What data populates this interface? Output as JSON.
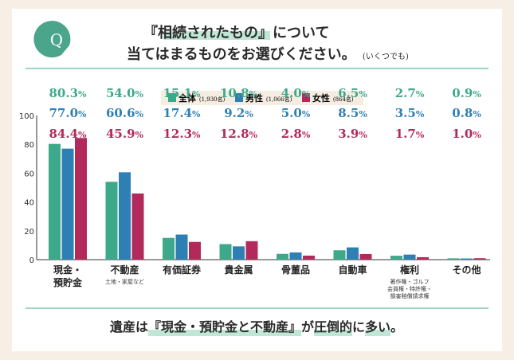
{
  "question": {
    "badge": "Q",
    "line1": "『相続されたもの』について",
    "line1_highlight": "相続されたもの",
    "line2_main": "当てはまるものをお選びください。",
    "line2_note": "(いくつでも)"
  },
  "colors": {
    "all": "#3ea98a",
    "male": "#2e7fb3",
    "female": "#b22a5c",
    "badge": "#4aa58a",
    "highlight": "#bfe6d6",
    "background": "#f7efe6"
  },
  "chart_data": {
    "type": "bar",
    "title": "『相続されたもの』について",
    "xlabel": "",
    "ylabel": "",
    "ylim": [
      0,
      100
    ],
    "yticks": [
      0,
      20,
      40,
      60,
      80,
      100
    ],
    "legend_position": "top-center",
    "categories": [
      {
        "name": "現金・預貯金",
        "lines": [
          "現金・",
          "預貯金"
        ],
        "sub": []
      },
      {
        "name": "不動産",
        "lines": [
          "不動産"
        ],
        "sub": [
          "土地・家屋など"
        ]
      },
      {
        "name": "有価証券",
        "lines": [
          "有価証券"
        ],
        "sub": []
      },
      {
        "name": "貴金属",
        "lines": [
          "貴金属"
        ],
        "sub": []
      },
      {
        "name": "骨董品",
        "lines": [
          "骨董品"
        ],
        "sub": []
      },
      {
        "name": "自動車",
        "lines": [
          "自動車"
        ],
        "sub": []
      },
      {
        "name": "権利",
        "lines": [
          "権利"
        ],
        "sub": [
          "著作権・ゴルフ",
          "会員権・特許権・",
          "損害賠償請求権"
        ]
      },
      {
        "name": "その他",
        "lines": [
          "その他"
        ],
        "sub": []
      }
    ],
    "series": [
      {
        "key": "all",
        "name": "全体",
        "n": "(1,930名)",
        "values": [
          80.3,
          54.0,
          15.1,
          10.8,
          4.0,
          6.5,
          2.7,
          0.9
        ]
      },
      {
        "key": "male",
        "name": "男性",
        "n": "(1,066名)",
        "values": [
          77.0,
          60.6,
          17.4,
          9.2,
          5.0,
          8.5,
          3.5,
          0.8
        ]
      },
      {
        "key": "female",
        "name": "女性",
        "n": "(864名)",
        "values": [
          84.4,
          45.9,
          12.3,
          12.8,
          2.8,
          3.9,
          1.7,
          1.0
        ]
      }
    ],
    "label_texts": [
      [
        "80.3%",
        "54.0%",
        "15.1%",
        "10.8%",
        "4.0%",
        "6.5%",
        "2.7%",
        "0.9%"
      ],
      [
        "77.0%",
        "60.6%",
        "17.4%",
        "9.2%",
        "5.0%",
        "8.5%",
        "3.5%",
        "0.8%"
      ],
      [
        "84.4%",
        "45.9%",
        "12.3%",
        "12.8%",
        "2.8%",
        "3.9%",
        "1.7%",
        "1.0%"
      ]
    ]
  },
  "footer": {
    "segments": [
      {
        "text": "遺産は",
        "hl": false
      },
      {
        "text": "『現金・預貯金と不動産』",
        "hl": true
      },
      {
        "text": "が",
        "hl": false
      },
      {
        "text": "圧倒的",
        "hl": true
      },
      {
        "text": "に",
        "hl": false
      },
      {
        "text": "多い",
        "hl": true
      },
      {
        "text": "。",
        "hl": false
      }
    ]
  }
}
